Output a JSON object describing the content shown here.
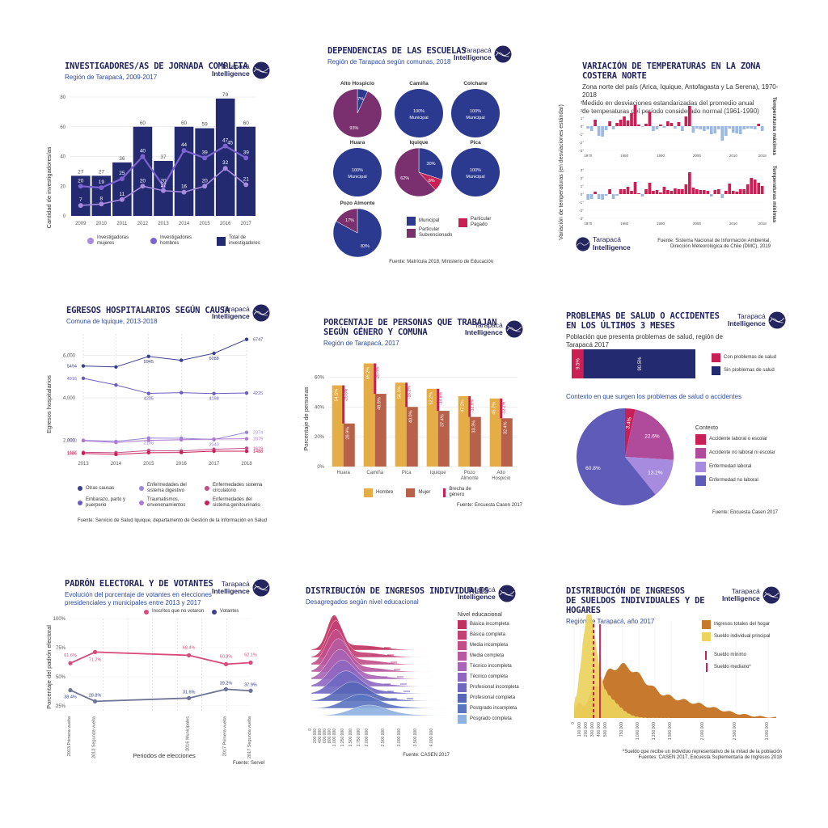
{
  "brand": {
    "line1": "Tarapacá",
    "line2": "Intelligence"
  },
  "colors": {
    "navy": "#232a6f",
    "purple": "#7b63d0",
    "lilac": "#a68bde",
    "magenta": "#c91f55",
    "pink": "#d84a7a",
    "gold": "#e5ad45",
    "rust": "#b8614a",
    "blue": "#9db9e0",
    "plum": "#7a2f6e"
  },
  "p1": {
    "title": "Investigadores/as de jornada completa",
    "subtitle": "Región de Tarapacá, 2009-2017",
    "ylabel": "Cantidad de investigadores/as",
    "legend": [
      "Investigadoras mujeres",
      "Investigadores hombres",
      "Total de investigadores"
    ]
  },
  "p2": {
    "title": "Dependencias de las escuelas",
    "subtitle": "Región de Tarapacá según comunas, 2018",
    "legend": [
      "Municipal",
      "Particular Pagado",
      "Particular Subvencionado"
    ],
    "source": "Fuente: Matrícula 2018, Ministerio de Educación"
  },
  "p3": {
    "title": "Variación de temperaturas en la zona costera norte",
    "subtitle": "Zona norte del país (Arica, Iquique, Antofagasta y La Serena), 1970-2018\nMedido en desviaciones estandarizadas del promedio anual\nde temperaturas del período considerado normal (1961-1990)",
    "ylabel": "Variación de temperaturas (en desviaciones estándar)",
    "facet1": "Temperaturas máximas",
    "facet2": "Temperaturas mínimas",
    "source": "Fuente: Sistema Nacional de Información Ambiental,\nDirección Meteorológica de Chile (DMC), 2019"
  },
  "p4": {
    "title": "Egresos hospitalarios según causa",
    "subtitle": "Comuna de Iquique, 2013-2018",
    "ylabel": "Egresos hospitalarios",
    "legend": [
      "Otras causas",
      "Enfermedades del sistema digestivo",
      "Enfermedades sistema circulatorio",
      "Embarazo, parto y puerperio",
      "Traumatismos, envenenamientos",
      "Enfermedades del sistema genitourinario"
    ],
    "source": "Fuente: Servicio de Salud Iquique, departamento de Gestión de la Información en Salud"
  },
  "p5": {
    "title": "Porcentaje de personas que trabajan\nsegún género y comuna",
    "subtitle": "Región de Tarapacá, 2017",
    "ylabel": "Porcentaje de personas",
    "legend": [
      "Hombre",
      "Mujer",
      "Brecha de género"
    ],
    "source": "Fuente: Encuesta Casen 2017"
  },
  "p6": {
    "title": "Problemas de salud o accidentes\nen los últimos 3 meses",
    "subtitle": "Población que presenta problemas de salud, región de Tarapacá 2017",
    "bar_legend": [
      "Con problemas de salud",
      "Sin problemas de salud"
    ],
    "subtitle2": "Contexto en que surgen los problemas de salud o accidentes",
    "legend_title": "Contexto",
    "legend": [
      "Accidente laboral o escolar",
      "Accidente no laboral ni escolar",
      "Enfermedad laboral",
      "Enfermedad no laboral"
    ],
    "source": "Fuente: Encuesta Casen 2017"
  },
  "p7": {
    "title": "Padrón electoral y de votantes",
    "subtitle": "Evolución del porcentaje de votantes en elecciones\npresidenciales y municipales entre 2013 y 2017",
    "ylabel": "Porcentaje del padrón electoral",
    "xlabel": "Periodos de elecciones",
    "legend": [
      "Inscritos que no votaron",
      "Votantes"
    ],
    "source": "Fuente: Servel"
  },
  "p8": {
    "title": "Distribución de ingresos individuales",
    "subtitle": "Desagregados según nivel educacional",
    "legend_title": "Nivel educacional",
    "legend": [
      "Básica incompleta",
      "Básica completa",
      "Media incompleta",
      "Media completa",
      "Técnico incompleta",
      "Técnico completa",
      "Profesional incompleta",
      "Profesional completa",
      "Postgrado incompleta",
      "Posgrado completa"
    ],
    "source": "Fuente: CASEN 2017"
  },
  "p9": {
    "title": "Distribución de ingresos\nde sueldos individuales y de hogares",
    "subtitle": "Región de Tarapacá, año 2017",
    "legend": [
      "Ingresos totales del hogar",
      "Sueldo individual principal",
      "Sueldo mínimo",
      "Sueldo mediano*"
    ],
    "note": "*Sueldo que recibe un individuo representativo de la mitad de la población\nFuentes: CASEN 2017, Encuesta Suplementaria de Ingresos 2018"
  },
  "chart_data": [
    {
      "id": "p1",
      "type": "bar",
      "categories": [
        "2009",
        "2010",
        "2011",
        "2012",
        "2013",
        "2014",
        "2015",
        "2016",
        "2017"
      ],
      "ylim": [
        0,
        80
      ],
      "yticks": [
        0,
        20,
        40,
        60,
        80
      ],
      "series": [
        {
          "name": "Total de investigadores",
          "values": [
            27,
            27,
            36,
            60,
            37,
            60,
            59,
            79,
            60
          ]
        },
        {
          "name": "Investigadores hombres",
          "values": [
            20,
            19,
            25,
            40,
            20,
            44,
            39,
            47,
            39
          ]
        },
        {
          "name": "Investigadoras mujeres",
          "values": [
            7,
            8,
            11,
            20,
            17,
            16,
            20,
            32,
            21
          ]
        }
      ],
      "extra_label": {
        "index": 7,
        "value": "45"
      }
    },
    {
      "id": "p2",
      "type": "pie",
      "pies": [
        {
          "name": "Alto Hospicio",
          "slices": [
            {
              "label": "Municipal",
              "value": 7
            },
            {
              "label": "Particular Subvencionado",
              "value": 93
            }
          ],
          "labels": [
            "7%",
            "93%"
          ]
        },
        {
          "name": "Camiña",
          "slices": [
            {
              "label": "Municipal",
              "value": 100
            }
          ],
          "labels": [
            "100%\nMunicipal"
          ]
        },
        {
          "name": "Colchane",
          "slices": [
            {
              "label": "Municipal",
              "value": 100
            }
          ],
          "labels": [
            "100%\nMunicipal"
          ]
        },
        {
          "name": "Huara",
          "slices": [
            {
              "label": "Municipal",
              "value": 100
            }
          ],
          "labels": [
            "100%\nMunicipal"
          ]
        },
        {
          "name": "Iquique",
          "slices": [
            {
              "label": "Municipal",
              "value": 30
            },
            {
              "label": "Particular Pagado",
              "value": 8
            },
            {
              "label": "Particular Subvencionado",
              "value": 62
            }
          ],
          "labels": [
            "30%",
            "8%",
            "62%"
          ]
        },
        {
          "name": "Pica",
          "slices": [
            {
              "label": "Municipal",
              "value": 100
            }
          ],
          "labels": [
            "100%\nMunicipal"
          ]
        },
        {
          "name": "Pozo Almonte",
          "slices": [
            {
              "label": "Municipal",
              "value": 83
            },
            {
              "label": "Particular Subvencionado",
              "value": 17
            }
          ],
          "labels": [
            "83%",
            "17%"
          ]
        }
      ]
    },
    {
      "id": "p3",
      "type": "bar",
      "x": [
        1970,
        1971,
        1972,
        1973,
        1974,
        1975,
        1976,
        1977,
        1978,
        1979,
        1980,
        1981,
        1982,
        1983,
        1984,
        1985,
        1986,
        1987,
        1988,
        1989,
        1990,
        1991,
        1992,
        1993,
        1994,
        1995,
        1996,
        1997,
        1998,
        1999,
        2000,
        2001,
        2002,
        2003,
        2004,
        2005,
        2006,
        2007,
        2008,
        2009,
        2010,
        2011,
        2012,
        2013,
        2014,
        2015,
        2016,
        2017,
        2018
      ],
      "xticks": [
        1970,
        1980,
        1990,
        2000,
        2010,
        2018
      ],
      "ylim": [
        -3,
        3
      ],
      "yticks": [
        "3°",
        "2°",
        "1°",
        "0°",
        "-1°",
        "-2°",
        "-3°"
      ],
      "series": [
        {
          "name": "Temperaturas máximas",
          "values": [
            -0.3,
            -0.6,
            0.8,
            -1.2,
            -1.3,
            -0.5,
            0.6,
            -0.4,
            0.4,
            0.8,
            1.2,
            0.7,
            1.6,
            2.6,
            0.2,
            -0.1,
            0.3,
            1.8,
            -0.6,
            -0.4,
            0.2,
            -0.2,
            0.6,
            0.4,
            -0.3,
            0.5,
            -0.6,
            1.2,
            2.5,
            -0.8,
            -0.3,
            -0.4,
            -0.6,
            -0.4,
            -1.0,
            -0.9,
            -0.4,
            -1.8,
            -1.2,
            -0.3,
            -0.8,
            -0.9,
            -1.0,
            -0.4,
            -0.3,
            -0.3,
            -0.4,
            0.3,
            -0.6
          ]
        },
        {
          "name": "Temperaturas mínimas",
          "values": [
            -0.7,
            -0.6,
            0.3,
            -0.6,
            -0.7,
            -0.2,
            0.6,
            -0.6,
            -0.2,
            0.6,
            0.6,
            0.9,
            0.4,
            1.5,
            0.1,
            -0.3,
            0.6,
            1.4,
            0.4,
            0.5,
            0.2,
            0.9,
            0.5,
            0.4,
            0.7,
            0.6,
            0.6,
            1.2,
            2.7,
            0.8,
            0.6,
            0.5,
            0.5,
            0.4,
            -0.3,
            0.5,
            0.6,
            -0.5,
            0.4,
            1.3,
            0.4,
            0.3,
            0.6,
            0.6,
            1.2,
            2.0,
            1.8,
            1.4,
            1.0
          ]
        }
      ]
    },
    {
      "id": "p4",
      "type": "line",
      "x": [
        "2013",
        "2014",
        "2015",
        "2016",
        "2017",
        "2018"
      ],
      "ylim": [
        1300,
        7000
      ],
      "yticks": [
        2000,
        4000,
        6000
      ],
      "series": [
        {
          "name": "Otras causas",
          "values": [
            5494,
            5450,
            5945,
            5760,
            6088,
            6747
          ],
          "labels": [
            "5494",
            "",
            "5945",
            "",
            "6088",
            "6747"
          ]
        },
        {
          "name": "Enfermedades del sistema digestivo",
          "values": [
            2000,
            1950,
            2108,
            2100,
            2040,
            2374
          ],
          "labels": [
            "2000",
            "",
            "2108",
            "",
            "2040",
            "2374"
          ]
        },
        {
          "name": "Enfermedades sistema circulatorio",
          "values": [
            1437,
            1420,
            1520,
            1500,
            1580,
            1629
          ],
          "labels": [
            "1437",
            "",
            "",
            "",
            "",
            "1629"
          ]
        },
        {
          "name": "Embarazo, parto y puerperio",
          "values": [
            4916,
            4600,
            4205,
            4240,
            4198,
            4225
          ],
          "labels": [
            "4916",
            "",
            "4205",
            "",
            "4198",
            "4225"
          ]
        },
        {
          "name": "Traumatismos, envenenamientos",
          "values": [
            1980,
            1900,
            2000,
            2030,
            2060,
            2075
          ],
          "labels": [
            "",
            "",
            "",
            "",
            "",
            "2075"
          ]
        },
        {
          "name": "Enfermedades del sistema genitourinario",
          "values": [
            1386,
            1340,
            1420,
            1430,
            1490,
            1488
          ],
          "labels": [
            "1386",
            "",
            "",
            "",
            "",
            "1488"
          ]
        }
      ]
    },
    {
      "id": "p5",
      "type": "bar",
      "categories": [
        "Huara",
        "Camiña",
        "Pica",
        "Iquique",
        "Pozo Almonte",
        "Alto Hospicio"
      ],
      "ylim": [
        0,
        70
      ],
      "yticks": [
        "0%",
        "20%",
        "40%",
        "60%"
      ],
      "series": [
        {
          "name": "Hombre",
          "values": [
            54.5,
            69.2,
            56.3,
            52.2,
            47.2,
            45.7
          ],
          "labels": [
            "54.5%",
            "69.2%",
            "56.3%",
            "52.2%",
            "47.2%",
            "45.7%"
          ]
        },
        {
          "name": "Mujer",
          "values": [
            28.9,
            48.8,
            40.0,
            37.4,
            33.3,
            32.4
          ],
          "labels": [
            "28.9%",
            "48.8%",
            "40.0%",
            "37.4%",
            "33.3%",
            "32.4%"
          ]
        },
        {
          "name": "Brecha de género",
          "values": [
            25.6,
            20.4,
            16.2,
            14.8,
            13.9,
            13.2
          ],
          "labels": [
            "-25.6%",
            "-20.4%",
            "-16.2%",
            "-14.8%",
            "-13.9%",
            "-13.2%"
          ]
        }
      ]
    },
    {
      "id": "p6a",
      "type": "bar",
      "categories": [
        "Con problemas de salud",
        "Sin problemas de salud"
      ],
      "values": [
        9.5,
        90.5
      ],
      "labels": [
        "9.5%",
        "90.5%"
      ]
    },
    {
      "id": "p6b",
      "type": "pie",
      "slices": [
        {
          "label": "Accidente laboral o escolar",
          "value": 3.4
        },
        {
          "label": "Accidente no laboral ni escolar",
          "value": 22.6
        },
        {
          "label": "Enfermedad laboral",
          "value": 13.2
        },
        {
          "label": "Enfermedad no laboral",
          "value": 60.8
        }
      ],
      "labels": [
        "3.4%",
        "22.6%",
        "13.2%",
        "60.8%"
      ]
    },
    {
      "id": "p7",
      "type": "line",
      "x": [
        "2013 Primera vuelta",
        "2013 Segunda vuelta",
        "2016 Municipales",
        "2017 Primera vuelta",
        "2017 Segunda vuelta"
      ],
      "ylim": [
        20,
        100
      ],
      "yticks": [
        "25%",
        "50%",
        "75%",
        "100%"
      ],
      "series": [
        {
          "name": "Inscritos que no votaron",
          "values": [
            61.6,
            71.2,
            68.4,
            60.8,
            62.1
          ],
          "labels": [
            "61.6%",
            "71.2%",
            "68.4%",
            "60.8%",
            "62.1%"
          ]
        },
        {
          "name": "Votantes",
          "values": [
            38.4,
            28.8,
            31.6,
            39.2,
            37.9
          ],
          "labels": [
            "38.4%",
            "28.8%",
            "31.6%",
            "39.2%",
            "37.9%"
          ]
        }
      ]
    },
    {
      "id": "p8",
      "type": "area",
      "xticks": [
        "0",
        "200.000",
        "400.000",
        "600.000",
        "800.000",
        "1.000.000",
        "1.250.000",
        "1.500.000",
        "1.750.000",
        "2.000.000",
        "2.500.000",
        "3.000.000",
        "3.500.000",
        "4.000.000"
      ]
    },
    {
      "id": "p9",
      "type": "area",
      "xticks": [
        "0",
        "100.000",
        "200.000",
        "300.000",
        "400.000",
        "500.000",
        "750.000",
        "1.000.000",
        "1.250.000",
        "1.500.000",
        "2.000.000",
        "2.500.000",
        "3.000.000"
      ]
    }
  ]
}
